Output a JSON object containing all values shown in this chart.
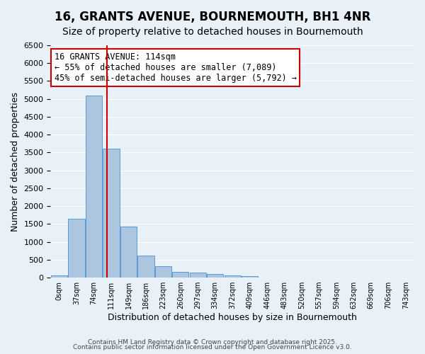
{
  "title": "16, GRANTS AVENUE, BOURNEMOUTH, BH1 4NR",
  "subtitle": "Size of property relative to detached houses in Bournemouth",
  "xlabel": "Distribution of detached houses by size in Bournemouth",
  "ylabel": "Number of detached properties",
  "bar_values": [
    60,
    1650,
    5100,
    3600,
    1420,
    610,
    320,
    155,
    135,
    100,
    55,
    35,
    10,
    5,
    2,
    1,
    0,
    0,
    0,
    0,
    0
  ],
  "bar_labels": [
    "0sqm",
    "37sqm",
    "74sqm",
    "111sqm",
    "149sqm",
    "186sqm",
    "223sqm",
    "260sqm",
    "297sqm",
    "334sqm",
    "372sqm",
    "409sqm",
    "446sqm",
    "483sqm",
    "520sqm",
    "557sqm",
    "594sqm",
    "632sqm",
    "669sqm",
    "706sqm",
    "743sqm"
  ],
  "ylim": [
    0,
    6500
  ],
  "yticks": [
    0,
    500,
    1000,
    1500,
    2000,
    2500,
    3000,
    3500,
    4000,
    4500,
    5000,
    5500,
    6000,
    6500
  ],
  "bar_color": "#adc6e0",
  "bar_edge_color": "#5b9bd5",
  "vline_x": 2.77,
  "vline_color": "#cc0000",
  "annotation_text": "16 GRANTS AVENUE: 114sqm\n← 55% of detached houses are smaller (7,089)\n45% of semi-detached houses are larger (5,792) →",
  "annotation_box_color": "#ffffff",
  "annotation_box_edgecolor": "#cc0000",
  "annotation_fontsize": 8.5,
  "bg_color": "#e8f0f8",
  "plot_bg_color": "#e8f0f8",
  "grid_color": "#ffffff",
  "footer_line1": "Contains HM Land Registry data © Crown copyright and database right 2025.",
  "footer_line2": "Contains public sector information licensed under the Open Government Licence v3.0.",
  "title_fontsize": 12,
  "subtitle_fontsize": 10,
  "xlabel_fontsize": 9,
  "ylabel_fontsize": 9
}
